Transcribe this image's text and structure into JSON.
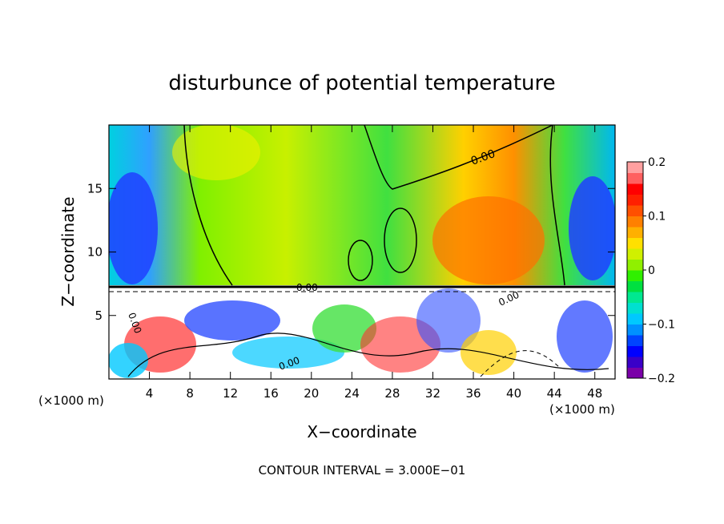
{
  "chart_data": {
    "type": "heatmap",
    "title": "disturbunce of potential temperature",
    "xlabel": "X−coordinate",
    "ylabel": "Z−coordinate",
    "x_unit": "(×1000 m)",
    "x_unit_right": "(×1000 m)",
    "footer": "CONTOUR INTERVAL = 3.000E−01",
    "xlim": [
      0,
      50
    ],
    "ylim": [
      0,
      20
    ],
    "x_ticks": [
      4,
      8,
      12,
      16,
      20,
      24,
      28,
      32,
      36,
      40,
      44,
      48
    ],
    "x_tick_labels": [
      "4",
      "8",
      "12",
      "16",
      "20",
      "24",
      "28",
      "32",
      "36",
      "40",
      "44",
      "48"
    ],
    "y_ticks": [
      5,
      10,
      15
    ],
    "y_tick_labels": [
      "5",
      "10",
      "15"
    ],
    "colorbar": {
      "range": [
        -0.2,
        0.2
      ],
      "ticks": [
        0.2,
        0.1,
        0,
        -0.1,
        -0.2
      ],
      "tick_labels": [
        "0.2",
        "0.1",
        "0",
        "−0.1",
        "−0.2"
      ],
      "colors": [
        "#7a00a8",
        "#3a00c8",
        "#0000ff",
        "#0044ff",
        "#0090ff",
        "#00c8ff",
        "#00e0d0",
        "#00e890",
        "#00e040",
        "#30f000",
        "#90f000",
        "#d0f000",
        "#ffe000",
        "#ffb000",
        "#ff8000",
        "#ff5000",
        "#ff2000",
        "#ff0000",
        "#ff6060",
        "#ffa0a0"
      ]
    },
    "contour_labels": [
      "0.00",
      "0.00",
      "0.00",
      "0.00",
      "0.00"
    ],
    "grid": false,
    "legend": "right colorbar"
  }
}
